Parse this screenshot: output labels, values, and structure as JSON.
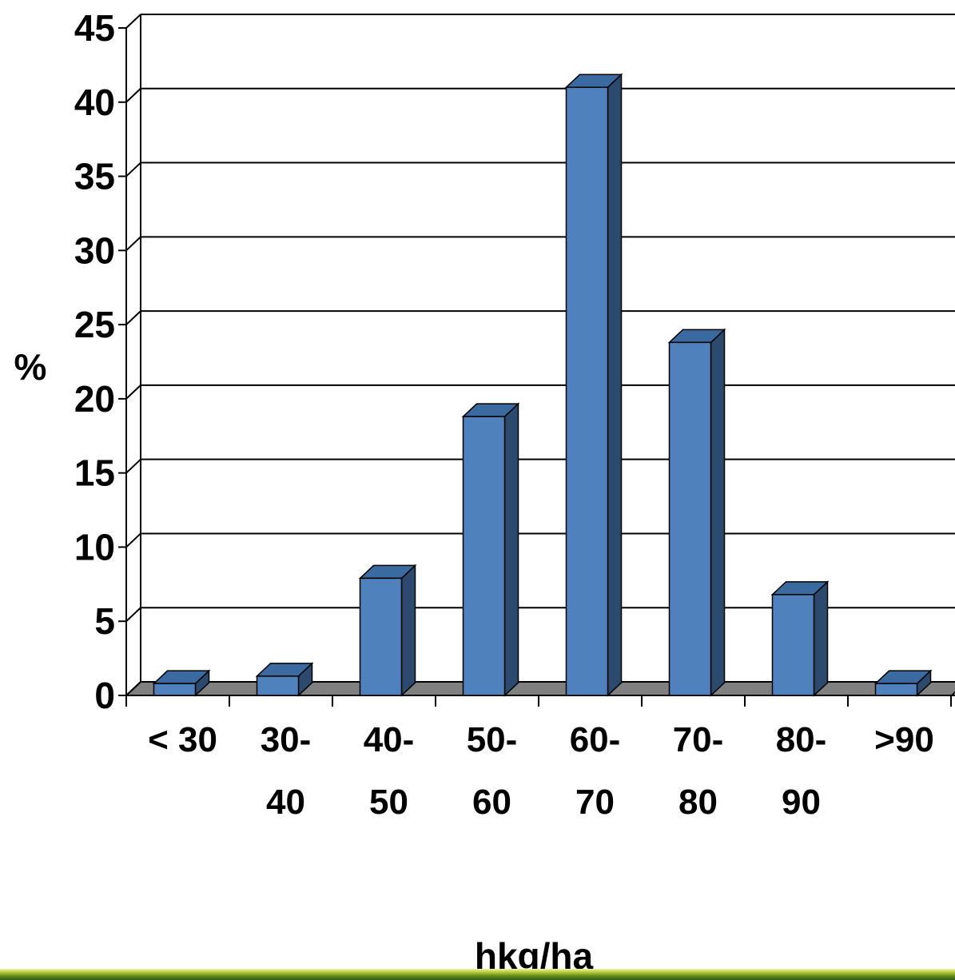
{
  "chart_data": {
    "type": "bar",
    "title": "",
    "xlabel": "hkg/ha",
    "ylabel": "%",
    "ylim": [
      0,
      45
    ],
    "yticks": [
      "0",
      "5",
      "10",
      "15",
      "20",
      "25",
      "30",
      "35",
      "40",
      "45"
    ],
    "grid": true,
    "legend": "none",
    "categories": [
      [
        "< 30"
      ],
      [
        "30-",
        "40"
      ],
      [
        "40-",
        "50"
      ],
      [
        "50-",
        "60"
      ],
      [
        "60-",
        "70"
      ],
      [
        "70-",
        "80"
      ],
      [
        "80-",
        "90"
      ],
      [
        ">90"
      ]
    ],
    "values": [
      0.8,
      1.3,
      7.9,
      18.8,
      41.0,
      23.8,
      6.8,
      0.8
    ],
    "colors": {
      "bar_front": "#4f81bd",
      "bar_side": "#2c4a6e",
      "bar_top": "#3a6aa0",
      "floor": "#808080"
    }
  }
}
